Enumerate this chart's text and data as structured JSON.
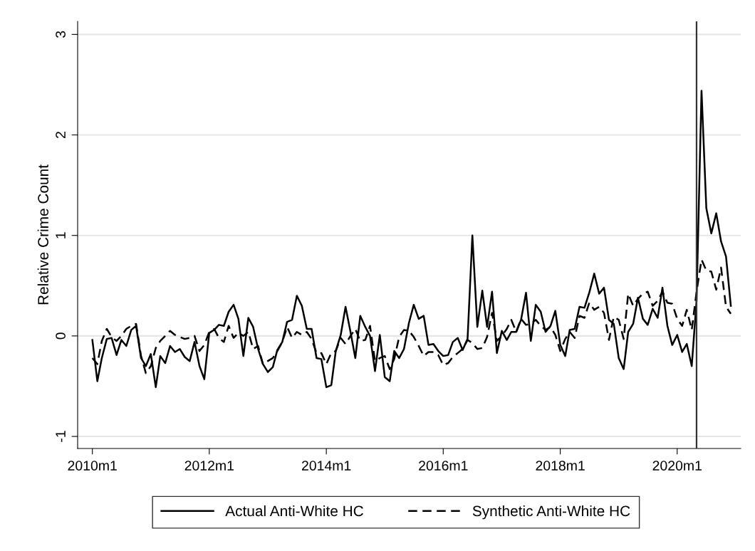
{
  "chart_data": {
    "type": "line",
    "ylabel": "Relative Crime Count",
    "x": [
      "2010-01",
      "2010-02",
      "2010-03",
      "2010-04",
      "2010-05",
      "2010-06",
      "2010-07",
      "2010-08",
      "2010-09",
      "2010-10",
      "2010-11",
      "2010-12",
      "2011-01",
      "2011-02",
      "2011-03",
      "2011-04",
      "2011-05",
      "2011-06",
      "2011-07",
      "2011-08",
      "2011-09",
      "2011-10",
      "2011-11",
      "2011-12",
      "2012-01",
      "2012-02",
      "2012-03",
      "2012-04",
      "2012-05",
      "2012-06",
      "2012-07",
      "2012-08",
      "2012-09",
      "2012-10",
      "2012-11",
      "2012-12",
      "2013-01",
      "2013-02",
      "2013-03",
      "2013-04",
      "2013-05",
      "2013-06",
      "2013-07",
      "2013-08",
      "2013-09",
      "2013-10",
      "2013-11",
      "2013-12",
      "2014-01",
      "2014-02",
      "2014-03",
      "2014-04",
      "2014-05",
      "2014-06",
      "2014-07",
      "2014-08",
      "2014-09",
      "2014-10",
      "2014-11",
      "2014-12",
      "2015-01",
      "2015-02",
      "2015-03",
      "2015-04",
      "2015-05",
      "2015-06",
      "2015-07",
      "2015-08",
      "2015-09",
      "2015-10",
      "2015-11",
      "2015-12",
      "2016-01",
      "2016-02",
      "2016-03",
      "2016-04",
      "2016-05",
      "2016-06",
      "2016-07",
      "2016-08",
      "2016-09",
      "2016-10",
      "2016-11",
      "2016-12",
      "2017-01",
      "2017-02",
      "2017-03",
      "2017-04",
      "2017-05",
      "2017-06",
      "2017-07",
      "2017-08",
      "2017-09",
      "2017-10",
      "2017-11",
      "2017-12",
      "2018-01",
      "2018-02",
      "2018-03",
      "2018-04",
      "2018-05",
      "2018-06",
      "2018-07",
      "2018-08",
      "2018-09",
      "2018-10",
      "2018-11",
      "2018-12",
      "2019-01",
      "2019-02",
      "2019-03",
      "2019-04",
      "2019-05",
      "2019-06",
      "2019-07",
      "2019-08",
      "2019-09",
      "2019-10",
      "2019-11",
      "2019-12",
      "2020-01",
      "2020-02",
      "2020-03",
      "2020-04",
      "2020-05",
      "2020-06",
      "2020-07",
      "2020-08",
      "2020-09",
      "2020-10",
      "2020-11",
      "2020-12"
    ],
    "series": [
      {
        "name": "Actual Anti-White HC",
        "color": "#000000",
        "line_style": "solid",
        "values": [
          -0.04,
          -0.45,
          -0.22,
          -0.03,
          -0.02,
          -0.19,
          -0.04,
          -0.1,
          0.06,
          0.1,
          -0.22,
          -0.3,
          -0.18,
          -0.51,
          -0.2,
          -0.27,
          -0.1,
          -0.16,
          -0.13,
          -0.21,
          -0.25,
          -0.06,
          -0.3,
          -0.43,
          0.03,
          0.06,
          0.11,
          0.1,
          0.24,
          0.31,
          0.17,
          -0.2,
          0.18,
          0.09,
          -0.13,
          -0.28,
          -0.36,
          -0.31,
          -0.14,
          -0.06,
          0.14,
          0.16,
          0.4,
          0.3,
          0.07,
          0.07,
          -0.22,
          -0.23,
          -0.51,
          -0.49,
          -0.15,
          0.01,
          0.29,
          0.04,
          -0.22,
          0.2,
          0.09,
          0.0,
          -0.35,
          0.01,
          -0.41,
          -0.45,
          -0.15,
          -0.22,
          -0.13,
          0.13,
          0.31,
          0.17,
          0.2,
          -0.09,
          -0.08,
          -0.15,
          -0.2,
          -0.19,
          -0.06,
          -0.02,
          -0.14,
          -0.03,
          1.0,
          0.09,
          0.45,
          0.09,
          0.44,
          -0.17,
          0.05,
          -0.04,
          0.04,
          0.04,
          0.16,
          0.43,
          -0.05,
          0.31,
          0.24,
          0.04,
          0.1,
          0.25,
          -0.09,
          -0.2,
          0.06,
          0.07,
          0.29,
          0.28,
          0.43,
          0.62,
          0.42,
          0.48,
          0.16,
          0.12,
          -0.22,
          -0.33,
          0.04,
          0.12,
          0.38,
          0.17,
          0.11,
          0.27,
          0.18,
          0.48,
          0.1,
          -0.09,
          0.01,
          -0.16,
          -0.08,
          -0.3,
          0.35,
          2.44,
          1.27,
          1.02,
          1.22,
          0.94,
          0.79,
          0.3
        ]
      },
      {
        "name": "Synthetic Anti-White HC",
        "color": "#000000",
        "line_style": "dashed",
        "values": [
          -0.22,
          -0.28,
          -0.05,
          0.07,
          -0.01,
          -0.05,
          0.0,
          0.07,
          0.1,
          0.12,
          -0.2,
          -0.37,
          -0.3,
          -0.12,
          -0.05,
          0.0,
          0.05,
          0.01,
          -0.01,
          -0.03,
          -0.02,
          0.0,
          -0.15,
          -0.09,
          0.04,
          0.07,
          -0.02,
          -0.06,
          0.1,
          -0.02,
          0.03,
          0.0,
          0.04,
          -0.13,
          -0.1,
          -0.28,
          -0.25,
          -0.22,
          -0.15,
          -0.06,
          0.09,
          -0.02,
          0.04,
          0.01,
          0.04,
          -0.03,
          -0.17,
          -0.17,
          -0.28,
          -0.17,
          -0.15,
          -0.02,
          -0.08,
          0.0,
          0.07,
          -0.05,
          -0.04,
          0.1,
          -0.25,
          -0.22,
          -0.2,
          -0.33,
          -0.23,
          -0.01,
          0.06,
          0.05,
          -0.01,
          -0.1,
          -0.2,
          -0.16,
          -0.16,
          -0.19,
          -0.29,
          -0.27,
          -0.21,
          -0.17,
          -0.13,
          -0.04,
          -0.07,
          -0.13,
          -0.12,
          -0.01,
          0.23,
          -0.05,
          0.0,
          0.07,
          0.16,
          0.04,
          0.17,
          0.11,
          0.12,
          0.16,
          0.1,
          0.06,
          0.09,
          0.01,
          -0.15,
          -0.03,
          0.04,
          -0.02,
          0.2,
          0.18,
          0.33,
          0.26,
          0.29,
          0.23,
          -0.04,
          0.19,
          0.16,
          -0.03,
          0.42,
          0.3,
          0.37,
          0.42,
          0.44,
          0.3,
          0.35,
          0.44,
          0.33,
          0.32,
          0.17,
          0.1,
          0.26,
          0.06,
          0.44,
          0.76,
          0.65,
          0.64,
          0.46,
          0.68,
          0.29,
          0.22
        ]
      }
    ],
    "xlim": [
      "2009-10",
      "2021-02"
    ],
    "xticks": [
      {
        "value": "2010-01",
        "label": "2010m1"
      },
      {
        "value": "2012-01",
        "label": "2012m1"
      },
      {
        "value": "2014-01",
        "label": "2014m1"
      },
      {
        "value": "2016-01",
        "label": "2016m1"
      },
      {
        "value": "2018-01",
        "label": "2018m1"
      },
      {
        "value": "2020-01",
        "label": "2020m1"
      }
    ],
    "ylim": [
      -1.12,
      3.13
    ],
    "yticks": [
      -1,
      0,
      1,
      2,
      3
    ],
    "grid": "y",
    "ref_lines": [
      {
        "axis": "x",
        "value": "2020-05",
        "color": "#333333",
        "line_style": "solid"
      }
    ],
    "legend": "bottom"
  }
}
